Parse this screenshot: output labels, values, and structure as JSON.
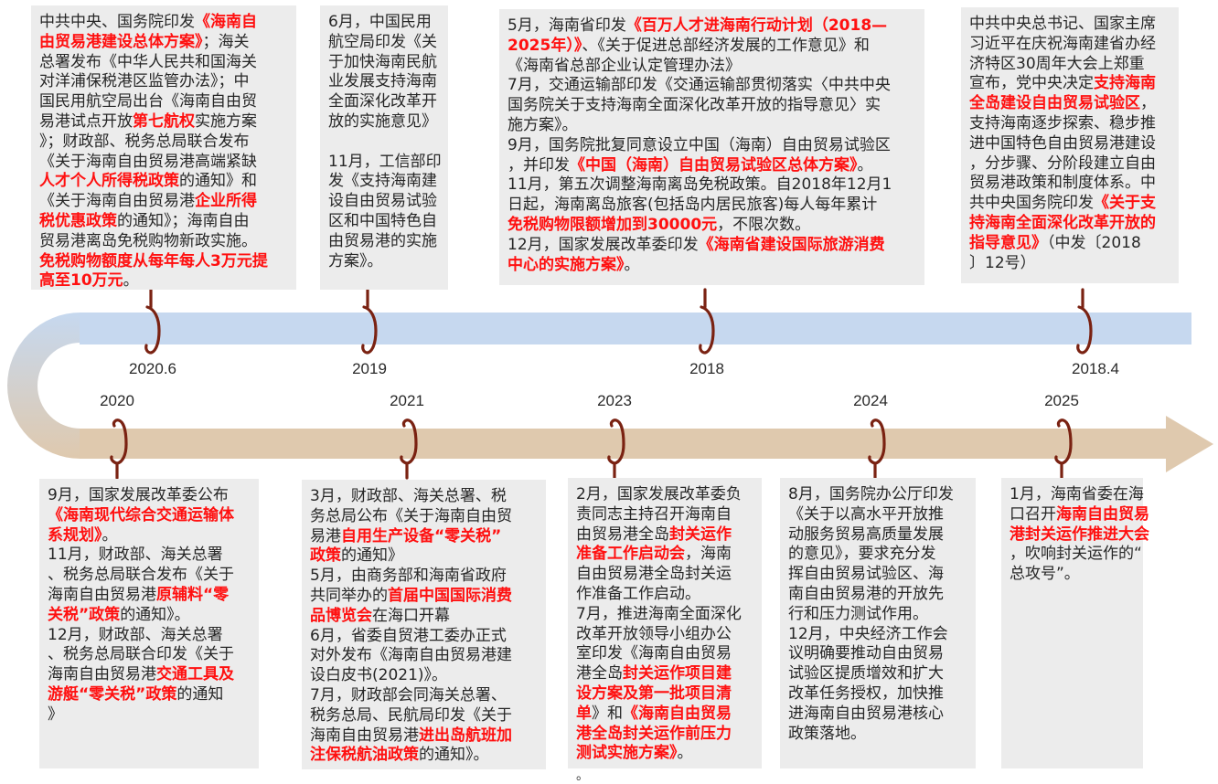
{
  "colors": {
    "top_band": "#c6d8ef",
    "bottom_band": "#dfc9ae",
    "hook": "#7a2212",
    "highlight": "#ff1010",
    "box_bg": "#ececec"
  },
  "top_labels": [
    "2020.6",
    "2019",
    "2018",
    "2018.4"
  ],
  "bottom_labels": [
    "2020",
    "2021",
    "2023",
    "2024",
    "2025"
  ],
  "top_boxes": [
    {
      "segments": [
        {
          "text": "中共中央、国务院印发"
        },
        {
          "text": "《海南自\n由贸易港建设总体方案》",
          "red": true
        },
        {
          "text": "；海关\n总署发布《中华人民共和国海关\n对洋浦保税港区监管办法》；中\n国民用航空局出台《海南自由贸\n易港试点开放"
        },
        {
          "text": "第七航权",
          "red": true
        },
        {
          "text": "实施方案\n》；财政部、税务总局联合发布\n《关于海南自由贸易港高端紧缺\n"
        },
        {
          "text": "人才个人所得税政策",
          "red": true
        },
        {
          "text": "的通知》和\n《关于海南自由贸易港"
        },
        {
          "text": "企业所得\n税优惠政策",
          "red": true
        },
        {
          "text": "的通知》；海南自由\n贸易港离岛免税购物新政实施。\n"
        },
        {
          "text": "免税购物额度从每年每人3万元提\n高至10万元",
          "red": true
        },
        {
          "text": "。"
        }
      ]
    },
    {
      "segments": [
        {
          "text": "6月，中国民用\n航空局印发《关\n于加快海南民航\n业发展支持海南\n全面深化改革开\n放的实施意见》\n\n11月，工信部印\n发《支持海南建\n设自由贸易试验\n区和中国特色自\n由贸易港的实施\n方案》。"
        }
      ]
    },
    {
      "segments": [
        {
          "text": "5月，海南省印发"
        },
        {
          "text": "《百万人才进海南行动计划（2018—\n2025年）》",
          "red": true
        },
        {
          "text": "、《关于促进总部经济发展的工作意见》和\n《海南省总部企业认定管理办法》\n7月，交通运输部印发《交通运输部贯彻落实〈中共中央\n国务院关于支持海南全面深化改革开放的指导意见〉实\n施方案》。\n9月，国务院批复同意设立中国（海南）自由贸易试验区\n，并印发"
        },
        {
          "text": "《中国（海南）自由贸易试验区总体方案》",
          "red": true
        },
        {
          "text": "。\n11月，第五次调整海南离岛免税政策。自2018年12月1\n日起，海南离岛旅客(包括岛内居民旅客)每人每年累计\n"
        },
        {
          "text": "免税购物限额增加到30000元",
          "red": true
        },
        {
          "text": "，不限次数。\n12月，国家发展改革委印发"
        },
        {
          "text": "《海南省建设国际旅游消费\n中心的实施方案》",
          "red": true
        },
        {
          "text": "。"
        }
      ]
    },
    {
      "segments": [
        {
          "text": "中共中央总书记、国家主席\n习近平在庆祝海南建省办经\n济特区30周年大会上郑重\n宣布，党中央决定"
        },
        {
          "text": "支持海南\n全岛建设自由贸易试验区",
          "red": true
        },
        {
          "text": "，\n支持海南逐步探索、稳步推\n进中国特色自由贸易港建设\n，分步骤、分阶段建立自由\n贸易港政策和制度体系。中\n共中央国务院印发"
        },
        {
          "text": "《关于支\n持海南全面深化改革开放的\n指导意见》",
          "red": true
        },
        {
          "text": "（中发〔2018\n〕12号）"
        }
      ]
    }
  ],
  "bottom_boxes": [
    {
      "segments": [
        {
          "text": "9月，国家发展改革委公布\n"
        },
        {
          "text": "《海南现代综合交通运输体\n系规划》",
          "red": true
        },
        {
          "text": "。\n11月，财政部、海关总署\n、税务总局联合发布《关于\n海南自由贸易港"
        },
        {
          "text": "原辅料“零\n关税”政策",
          "red": true
        },
        {
          "text": "的通知》。\n12月，财政部、海关总署\n、税务总局联合印发《关于\n海南自由贸易港"
        },
        {
          "text": "交通工具及\n游艇“零关税”政策",
          "red": true
        },
        {
          "text": "的通知\n》"
        }
      ]
    },
    {
      "segments": [
        {
          "text": "3月，财政部、海关总署、税\n务总局公布《关于海南自由贸\n易港"
        },
        {
          "text": "自用生产设备“零关税”\n政策",
          "red": true
        },
        {
          "text": "的通知》\n5月，由商务部和海南省政府\n共同举办的"
        },
        {
          "text": "首届中国国际消费\n品博览会",
          "red": true
        },
        {
          "text": "在海口开幕\n6月，省委自贸港工委办正式\n对外发布《海南自由贸易港建\n设白皮书(2021)》。\n7月，财政部会同海关总署、\n税务总局、民航局印发《关于\n海南自由贸易港"
        },
        {
          "text": "进出岛航班加\n注保税航油政策",
          "red": true
        },
        {
          "text": "的通知》。"
        }
      ]
    },
    {
      "segments": [
        {
          "text": "2月，国家发展改革委负\n责同志主持召开海南自\n由贸易港全岛"
        },
        {
          "text": "封关运作\n准备工作启动会",
          "red": true
        },
        {
          "text": "，海南\n自由贸易港全岛封关运\n作准备工作启动。\n7月，推进海南全面深化\n改革开放领导小组办公\n室印发《海南自由贸易\n港全岛"
        },
        {
          "text": "封关运作项目建\n设方案及第一批项目清\n单",
          "red": true
        },
        {
          "text": "》和"
        },
        {
          "text": "《海南自由贸易\n港全岛封关运作前压力\n测试实施方案》",
          "red": true
        },
        {
          "text": "。"
        }
      ]
    },
    {
      "segments": [
        {
          "text": "8月，国务院办公厅印发\n《关于以高水平开放推\n动服务贸易高质量发展\n的意见》，要求充分发\n挥自由贸易试验区、海\n南自由贸易港的开放先\n行和压力测试作用。\n12月，中央经济工作会\n议明确要推动自由贸易\n试验区提质增效和扩大\n改革任务授权，加快推\n进海南自由贸易港核心\n政策落地。"
        }
      ]
    },
    {
      "segments": [
        {
          "text": "1月，海南省委在海\n口召开"
        },
        {
          "text": "海南自由贸易\n港封关运作推进大会",
          "red": true
        },
        {
          "text": "\n，吹响封关运作的“\n总攻号”。"
        }
      ]
    }
  ],
  "stray_mark": "。"
}
